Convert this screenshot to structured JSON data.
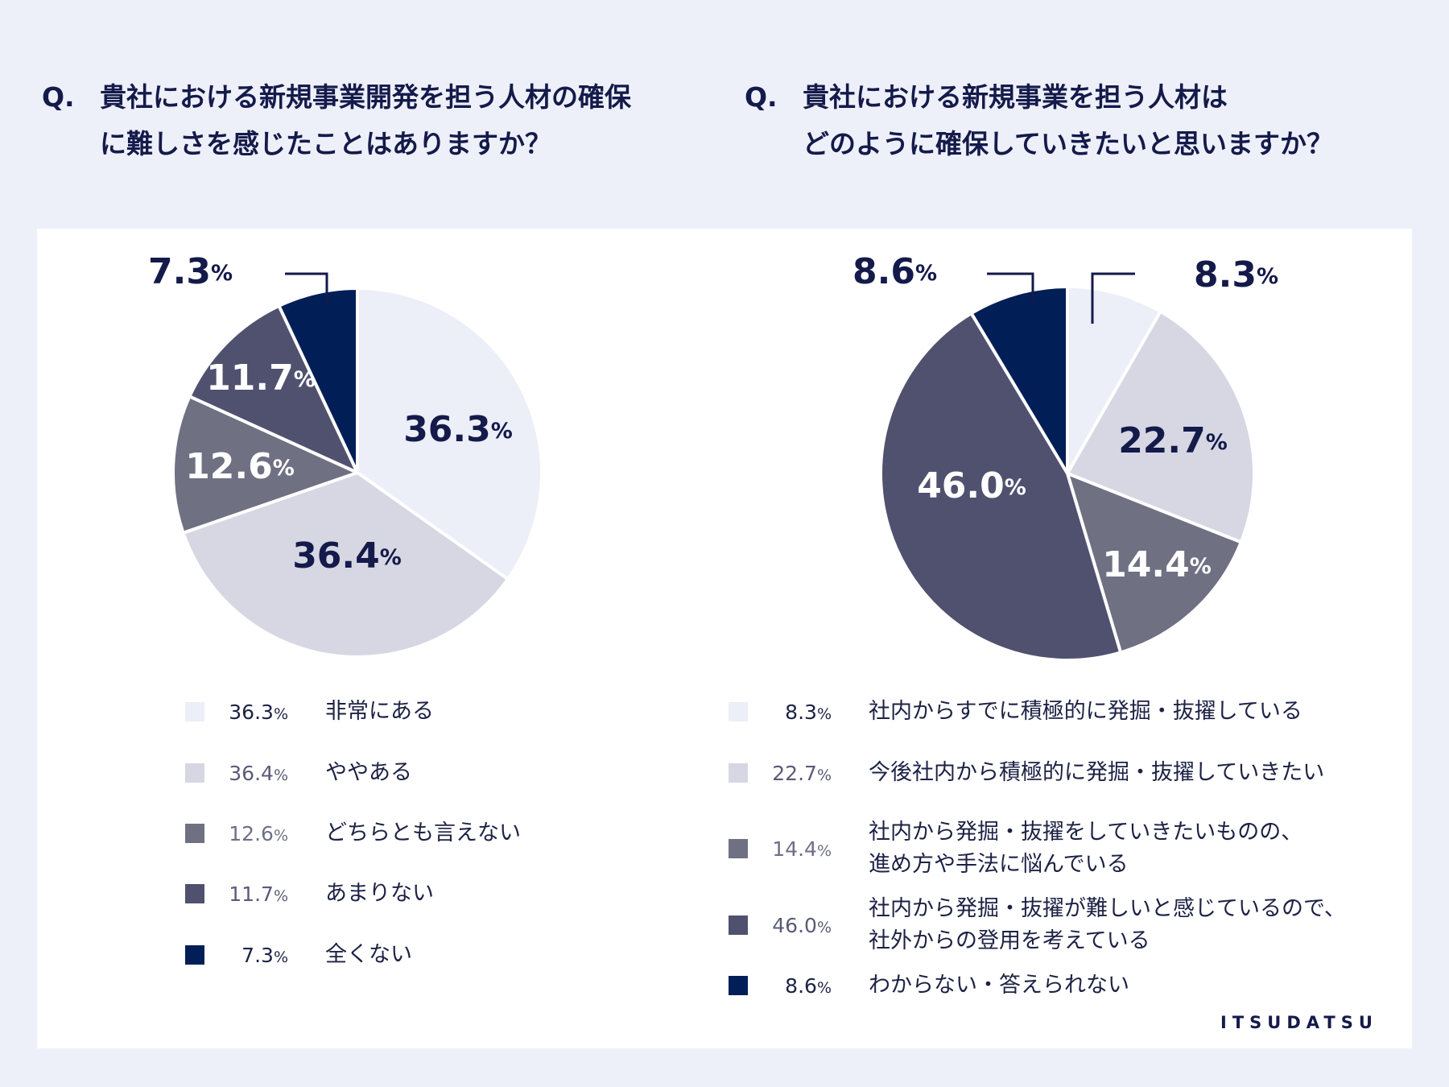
{
  "questions": [
    {
      "prefix": "Q.",
      "lines": [
        "貴社における新規事業開発を担う人材の確保",
        "に難しさを感じたことはありますか？"
      ]
    },
    {
      "prefix": "Q.",
      "lines": [
        "貴社における新規事業を担う人材は",
        "どのように確保していきたいと思いますか？"
      ]
    }
  ],
  "chart_data": [
    {
      "type": "pie",
      "unit": "%",
      "slices": [
        {
          "label": "非常にある",
          "value": 36.3,
          "color": "#eceef8",
          "value_text": "36.3"
        },
        {
          "label": "ややある",
          "value": 36.4,
          "color": "#d6d7e3",
          "value_text": "36.4"
        },
        {
          "label": "どちらとも言えない",
          "value": 12.6,
          "color": "#707083",
          "value_text": "12.6"
        },
        {
          "label": "あまりない",
          "value": 11.7,
          "color": "#50516f",
          "value_text": "11.7"
        },
        {
          "label": "全くない",
          "value": 7.3,
          "color": "#011e57",
          "value_text": "7.3"
        }
      ]
    },
    {
      "type": "pie",
      "unit": "%",
      "slices": [
        {
          "label": "社内からすでに積極的に発掘・抜擢している",
          "value": 8.3,
          "color": "#eceef8",
          "value_text": "8.3"
        },
        {
          "label": "今後社内から積極的に発掘・抜擢していきたい",
          "value": 22.7,
          "color": "#d6d7e3",
          "value_text": "22.7"
        },
        {
          "label": "社内から発掘・抜擢をしていきたいものの、\n進め方や手法に悩んでいる",
          "value": 14.4,
          "color": "#707083",
          "value_text": "14.4"
        },
        {
          "label": "社内から発掘・抜擢が難しいと感じているので、\n社外からの登用を考えている",
          "value": 46.0,
          "color": "#50516f",
          "value_text": "46.0"
        },
        {
          "label": "わからない・答えられない",
          "value": 8.6,
          "color": "#011e57",
          "value_text": "8.6"
        }
      ]
    }
  ],
  "logo": {
    "text": "ITSUDATSU"
  }
}
